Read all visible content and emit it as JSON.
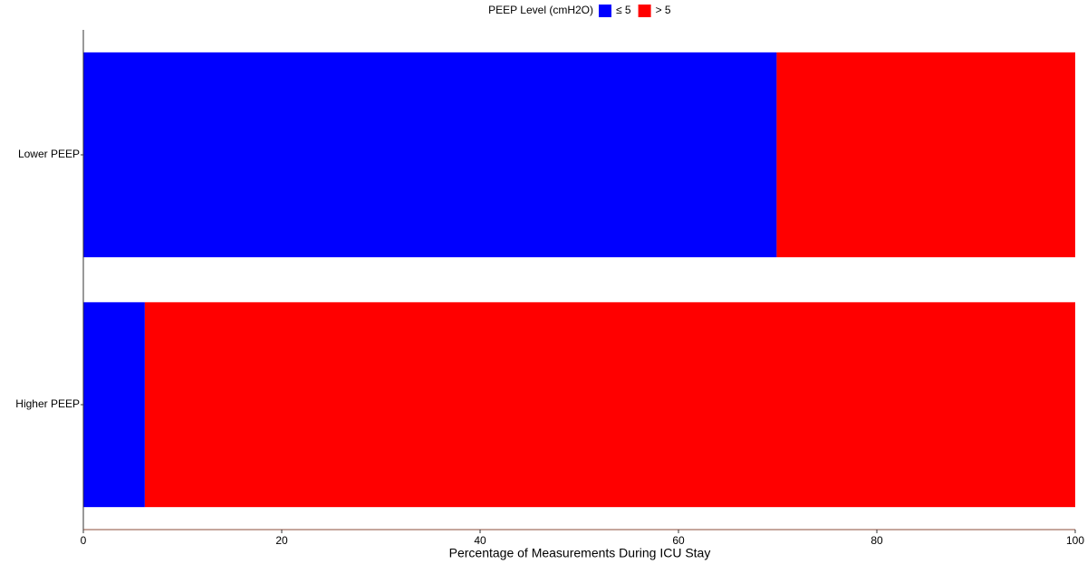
{
  "chart_data": {
    "type": "stacked_bar_horizontal",
    "legend_title": "PEEP Level (cmH2O)",
    "categories": [
      "Lower PEEP",
      "Higher PEEP"
    ],
    "series": [
      {
        "name": "≤ 5",
        "color": "#0000ff",
        "values": [
          69.9,
          6.2
        ]
      },
      {
        "name": "> 5",
        "color": "#ff0000",
        "values": [
          30.1,
          93.8
        ]
      }
    ],
    "xlabel": "Percentage of Measurements During ICU Stay",
    "xlim": [
      0,
      100
    ],
    "xticks": [
      0,
      20,
      40,
      60,
      80,
      100
    ],
    "legend_position": "top",
    "grid": false
  }
}
